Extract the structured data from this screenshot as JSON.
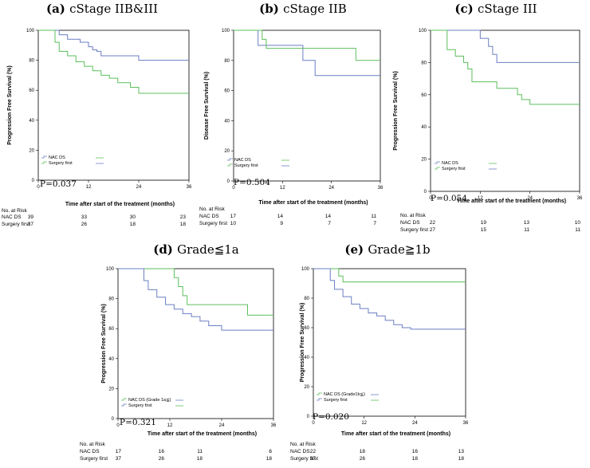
{
  "chart_data": [
    {
      "type": "line",
      "panel": "(a)",
      "title": "cStage IIB&III",
      "ylabel": "Progression Free Survival (%)",
      "xlabel": "Time after start of the treatment  (months)",
      "xlim": [
        0,
        36
      ],
      "ylim": [
        0,
        100
      ],
      "xticks": [
        "0",
        "12",
        "24",
        "36"
      ],
      "yticks": [
        "0",
        "20",
        "40",
        "60",
        "80",
        "100"
      ],
      "legend": [
        "NAC DS",
        "Surgery first"
      ],
      "pvalue": "P=0.037",
      "series": [
        {
          "name": "NAC DS",
          "color": "#6b7fc4",
          "x": [
            0,
            4,
            5,
            6,
            7,
            8,
            10,
            12,
            13,
            14,
            15,
            24,
            36
          ],
          "y": [
            100,
            100,
            97,
            97,
            94,
            94,
            92,
            89,
            87,
            86,
            83,
            80,
            80
          ]
        },
        {
          "name": "Surgery first",
          "color": "#5cbf5c",
          "x": [
            0,
            3,
            4,
            5,
            7,
            9,
            11,
            13,
            15,
            17,
            19,
            22,
            24,
            36
          ],
          "y": [
            100,
            100,
            92,
            86,
            83,
            79,
            76,
            73,
            70,
            68,
            65,
            62,
            58,
            58
          ]
        }
      ],
      "risk_table": {
        "header": "No. at Risk",
        "rows": [
          {
            "label": "NAC DS",
            "values": [
              "39",
              "33",
              "30",
              "23"
            ]
          },
          {
            "label": "Surgery first",
            "values": [
              "37",
              "26",
              "18",
              "18"
            ]
          }
        ]
      }
    },
    {
      "type": "line",
      "panel": "(b)",
      "title": "cStage IIB",
      "ylabel": "Disease Free Survival (%)",
      "xlabel": "Time after start of the treatment (months)",
      "xlim": [
        0,
        36
      ],
      "ylim": [
        0,
        100
      ],
      "xticks": [
        "0",
        "12",
        "24",
        "36"
      ],
      "yticks": [
        "0",
        "20",
        "40",
        "60",
        "80",
        "100"
      ],
      "legend": [
        "NAC DS",
        "Surgery first"
      ],
      "pvalue": "P=0.504",
      "series": [
        {
          "name": "NAC DS",
          "color": "#6b7fc4",
          "x": [
            0,
            5,
            6,
            12,
            17,
            20,
            36
          ],
          "y": [
            100,
            100,
            90,
            90,
            80,
            70,
            70
          ]
        },
        {
          "name": "Surgery first",
          "color": "#5cbf5c",
          "x": [
            0,
            6,
            7,
            8,
            30,
            36
          ],
          "y": [
            100,
            100,
            94,
            88,
            80,
            80
          ]
        }
      ],
      "risk_table": {
        "header": "No. at Risk",
        "rows": [
          {
            "label": "NAC DS",
            "values": [
              "17",
              "14",
              "14",
              "11"
            ]
          },
          {
            "label": "Surgery first",
            "values": [
              "10",
              "9",
              "7",
              "7"
            ]
          }
        ]
      }
    },
    {
      "type": "line",
      "panel": "(c)",
      "title": "cStage III",
      "ylabel": "Progression Free Survival (%)",
      "xlabel": "Time after start of the treatment (months)",
      "xlim": [
        0,
        36
      ],
      "ylim": [
        0,
        100
      ],
      "xticks": [
        "0",
        "12",
        "24",
        "36"
      ],
      "yticks": [
        "0",
        "20",
        "40",
        "60",
        "80",
        "100"
      ],
      "legend": [
        "NAC DS",
        "Surgery first"
      ],
      "pvalue": "P=0.054",
      "series": [
        {
          "name": "NAC DS",
          "color": "#6b7fc4",
          "x": [
            0,
            11,
            12,
            14,
            15,
            16,
            36
          ],
          "y": [
            100,
            100,
            95,
            90,
            85,
            80,
            80
          ]
        },
        {
          "name": "Surgery first",
          "color": "#5cbf5c",
          "x": [
            0,
            3,
            4,
            6,
            8,
            9,
            10,
            16,
            21,
            22,
            24,
            36
          ],
          "y": [
            100,
            100,
            88,
            84,
            80,
            76,
            68,
            64,
            60,
            57,
            54,
            54
          ]
        }
      ],
      "risk_table": {
        "header": "No. at Risk",
        "rows": [
          {
            "label": "NAC DS",
            "values": [
              "22",
              "19",
              "13",
              "10"
            ]
          },
          {
            "label": "Surgery first",
            "values": [
              "27",
              "15",
              "11",
              "11"
            ]
          }
        ]
      }
    },
    {
      "type": "line",
      "panel": "(d)",
      "title": "Grade≦1a",
      "ylabel": "Progression Free Survival (%)",
      "xlabel": "Time after start of the treatment    (months)",
      "xlim": [
        0,
        36
      ],
      "ylim": [
        0,
        100
      ],
      "xticks": [
        "0",
        "12",
        "24",
        "36"
      ],
      "yticks": [
        "0",
        "20",
        "40",
        "60",
        "80",
        "100"
      ],
      "legend": [
        "NAC DS (Grade 1a≦)",
        "Surgery first"
      ],
      "pvalue": "P=0.321",
      "series": [
        {
          "name": "NAC DS (Grade 1a≦)",
          "color": "#5cbf5c",
          "x": [
            0,
            11,
            13,
            14,
            15,
            16,
            30,
            36
          ],
          "y": [
            100,
            100,
            94,
            88,
            82,
            76,
            69,
            69
          ]
        },
        {
          "name": "Surgery first",
          "color": "#6b7fc4",
          "x": [
            0,
            5,
            6,
            7,
            9,
            11,
            13,
            15,
            17,
            19,
            21,
            24,
            36
          ],
          "y": [
            100,
            100,
            92,
            86,
            81,
            76,
            73,
            70,
            68,
            65,
            62,
            59,
            59
          ]
        }
      ],
      "risk_table": {
        "header": "No. at Risk",
        "rows": [
          {
            "label": "NAC DS",
            "values": [
              "17",
              "16",
              "11",
              "6"
            ]
          },
          {
            "label": "Surgery first",
            "values": [
              "37",
              "26",
              "18",
              "18"
            ]
          }
        ]
      }
    },
    {
      "type": "line",
      "panel": "(e)",
      "title": "Grade≧1b",
      "ylabel": "Progression Free Survival (%)",
      "xlabel": "Time after start of the treatment (months)",
      "xlim": [
        0,
        36
      ],
      "ylim": [
        0,
        100
      ],
      "xticks": [
        "0",
        "12",
        "24",
        "36"
      ],
      "yticks": [
        "0",
        "20",
        "40",
        "60",
        "80",
        "100"
      ],
      "legend": [
        "NAC DS (Grade1b≦)",
        "Surgery first"
      ],
      "pvalue": "P=0.020",
      "series": [
        {
          "name": "NAC DS (Grade1b≦)",
          "color": "#5cbf5c",
          "x": [
            0,
            5,
            6,
            7,
            36
          ],
          "y": [
            100,
            100,
            95,
            91,
            91
          ]
        },
        {
          "name": "Surgery first",
          "color": "#6b7fc4",
          "x": [
            0,
            3,
            4,
            5,
            7,
            9,
            11,
            13,
            15,
            17,
            19,
            21,
            23,
            36
          ],
          "y": [
            100,
            100,
            92,
            86,
            81,
            76,
            73,
            70,
            68,
            65,
            62,
            60,
            59,
            59
          ]
        }
      ],
      "risk_table": {
        "header": "No. at Risk",
        "rows": [
          {
            "label": "NAC DS",
            "values": [
              "22",
              "18",
              "16",
              "13"
            ]
          },
          {
            "label": "Surgery first",
            "values": [
              "37",
              "26",
              "18",
              "18"
            ]
          }
        ]
      }
    }
  ]
}
